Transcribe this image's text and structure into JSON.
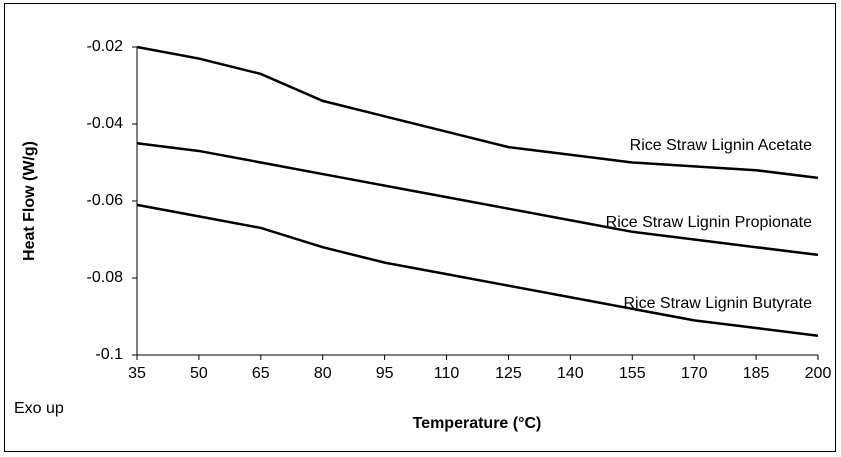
{
  "chart_data": {
    "type": "line",
    "x_label": "Temperature (°C)",
    "y_label": "Heat Flow (W/g)",
    "annotation": "Exo up",
    "x": [
      35,
      50,
      65,
      80,
      95,
      110,
      125,
      140,
      155,
      170,
      185,
      200
    ],
    "series": [
      {
        "name": "Rice Straw Lignin Acetate",
        "color": "#000000",
        "values": [
          -0.02,
          -0.023,
          -0.027,
          -0.034,
          -0.038,
          -0.042,
          -0.046,
          -0.048,
          -0.05,
          -0.051,
          -0.052,
          -0.054
        ]
      },
      {
        "name": "Rice Straw Lignin Propionate",
        "color": "#000000",
        "values": [
          -0.045,
          -0.047,
          -0.05,
          -0.053,
          -0.056,
          -0.059,
          -0.062,
          -0.065,
          -0.068,
          -0.07,
          -0.072,
          -0.074
        ]
      },
      {
        "name": "Rice Straw Lignin Butyrate",
        "color": "#000000",
        "values": [
          -0.061,
          -0.064,
          -0.067,
          -0.072,
          -0.076,
          -0.079,
          -0.082,
          -0.085,
          -0.088,
          -0.091,
          -0.093,
          -0.095
        ]
      }
    ],
    "xlim": [
      35,
      200
    ],
    "xticks": [
      35,
      50,
      65,
      80,
      95,
      110,
      125,
      140,
      155,
      170,
      185,
      200
    ],
    "ylim": [
      -0.1,
      -0.02
    ],
    "yticks": [
      -0.1,
      -0.08,
      -0.06,
      -0.04,
      -0.02
    ],
    "grid": false
  }
}
